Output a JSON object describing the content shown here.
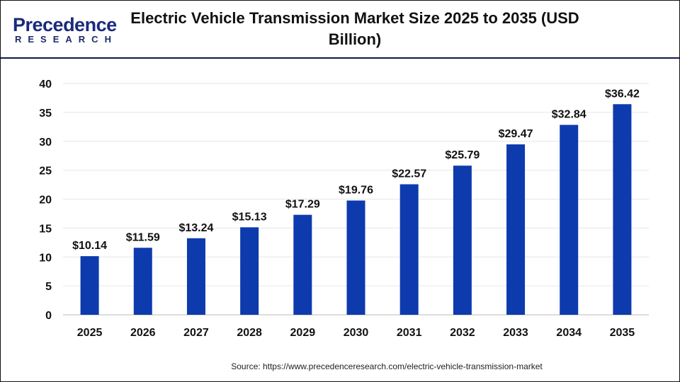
{
  "header": {
    "title": "Electric Vehicle Transmission Market Size 2025 to 2035 (USD Billion)",
    "logo_main": "Precedence",
    "logo_sub": "RESEARCH"
  },
  "colors": {
    "bar": "#0d3aad",
    "header_rule": "#0e1a4a"
  },
  "chart_data": {
    "type": "bar",
    "title": "Electric Vehicle Transmission Market Size 2025 to 2035 (USD Billion)",
    "categories": [
      "2025",
      "2026",
      "2027",
      "2028",
      "2029",
      "2030",
      "2031",
      "2032",
      "2033",
      "2034",
      "2035"
    ],
    "values": [
      10.14,
      11.59,
      13.24,
      15.13,
      17.29,
      19.76,
      22.57,
      25.79,
      29.47,
      32.84,
      36.42
    ],
    "data_labels": [
      "$10.14",
      "$11.59",
      "$13.24",
      "$15.13",
      "$17.29",
      "$19.76",
      "$22.57",
      "$25.79",
      "$29.47",
      "$32.84",
      "$36.42"
    ],
    "ylim": [
      0,
      40
    ],
    "yticks": [
      0,
      5,
      10,
      15,
      20,
      25,
      30,
      35,
      40
    ],
    "grid": true,
    "xlabel": "",
    "ylabel": ""
  },
  "footer": {
    "source": "Source: https://www.precedenceresearch.com/electric-vehicle-transmission-market"
  }
}
